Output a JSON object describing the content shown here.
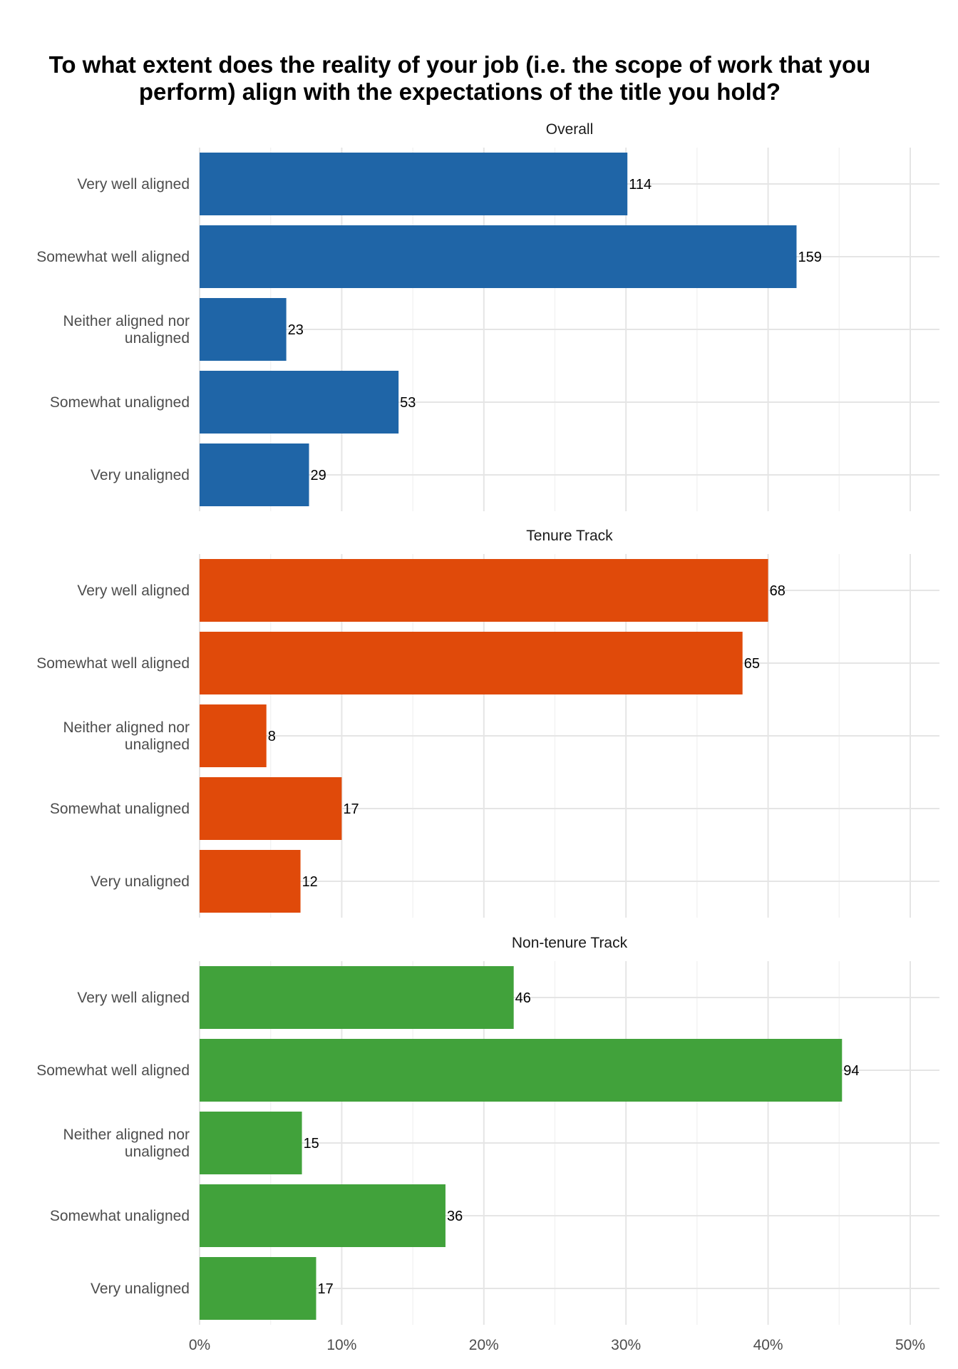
{
  "chart_data": {
    "type": "bar",
    "orientation": "horizontal",
    "title": "To what extent does the reality of your job (i.e. the scope of work that you perform) align with the expectations of the title you hold?",
    "categories": [
      "Very well aligned",
      "Somewhat well aligned",
      "Neither aligned nor unaligned",
      "Somewhat unaligned",
      "Very unaligned"
    ],
    "category_lines": [
      [
        "Very well aligned"
      ],
      [
        "Somewhat well aligned"
      ],
      [
        "Neither aligned nor",
        "unaligned"
      ],
      [
        "Somewhat unaligned"
      ],
      [
        "Very unaligned"
      ]
    ],
    "x_ticks": [
      "0%",
      "10%",
      "20%",
      "30%",
      "40%",
      "50%"
    ],
    "xlim": [
      0,
      52
    ],
    "xlabel": "",
    "ylabel": "",
    "grid": true,
    "facets": [
      {
        "name": "Overall",
        "color": "#1f65a7",
        "counts": [
          114,
          159,
          23,
          53,
          29
        ],
        "percentages": [
          30.1,
          42.0,
          6.1,
          14.0,
          7.7
        ]
      },
      {
        "name": "Tenure Track",
        "color": "#e04a0a",
        "counts": [
          68,
          65,
          8,
          17,
          12
        ],
        "percentages": [
          40.0,
          38.2,
          4.7,
          10.0,
          7.1
        ]
      },
      {
        "name": "Non-tenure Track",
        "color": "#41a23b",
        "counts": [
          46,
          94,
          15,
          36,
          17
        ],
        "percentages": [
          22.1,
          45.2,
          7.2,
          17.3,
          8.2
        ]
      }
    ]
  }
}
